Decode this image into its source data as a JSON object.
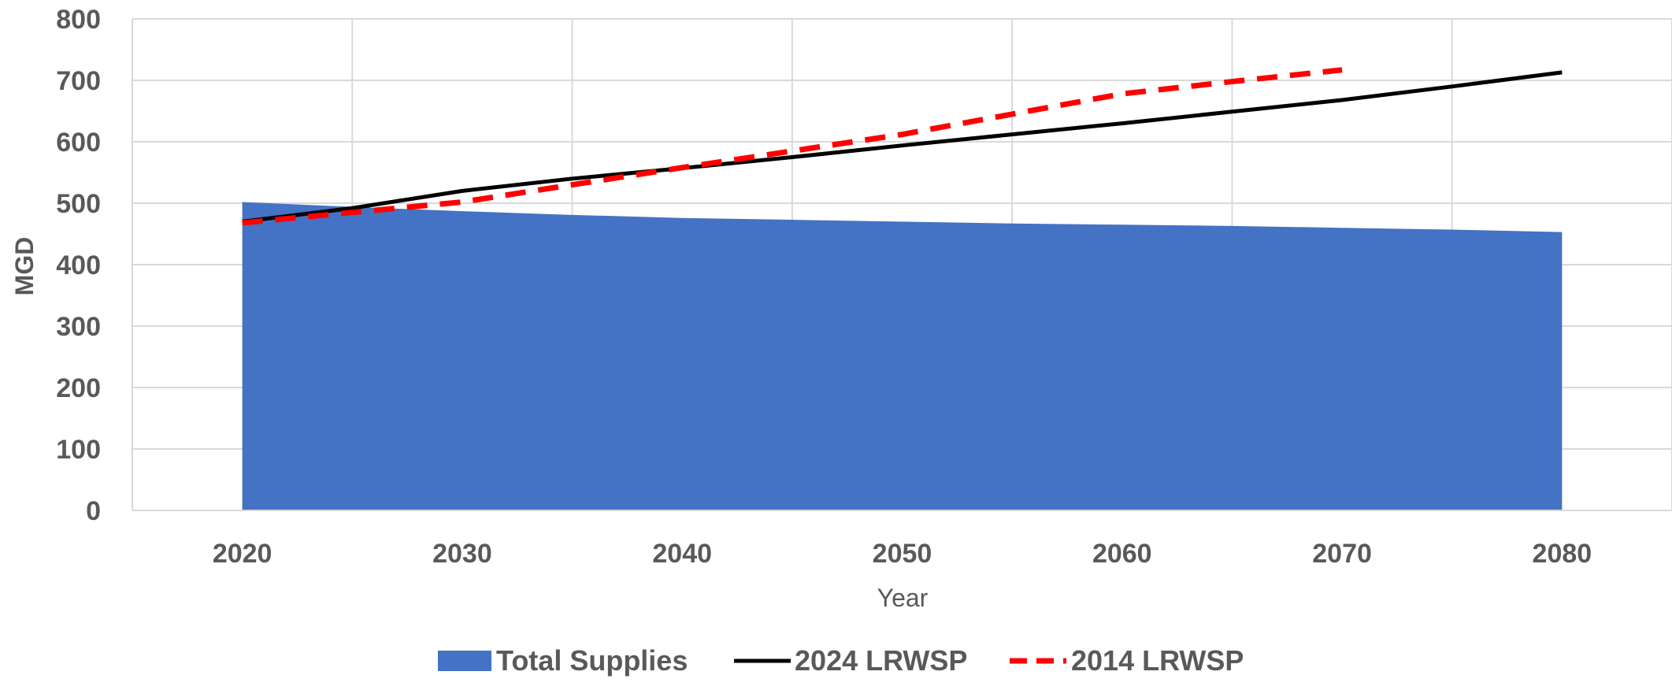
{
  "chart_data": {
    "type": "area",
    "xlabel": "Year",
    "ylabel": "MGD",
    "xlim": [
      2015,
      2085
    ],
    "ylim": [
      0,
      800
    ],
    "x_ticks": [
      2020,
      2030,
      2040,
      2050,
      2060,
      2070,
      2080
    ],
    "y_ticks": [
      0,
      100,
      200,
      300,
      400,
      500,
      600,
      700,
      800
    ],
    "grid": true,
    "legend_position": "bottom",
    "series": [
      {
        "name": "Total Supplies",
        "kind": "area",
        "color": "#4472C4",
        "x": [
          2020,
          2025,
          2030,
          2035,
          2040,
          2045,
          2050,
          2055,
          2060,
          2065,
          2070,
          2075,
          2080
        ],
        "values": [
          502,
          494,
          487,
          481,
          476,
          473,
          470,
          467,
          465,
          463,
          460,
          457,
          453
        ]
      },
      {
        "name": "2024 LRWSP",
        "kind": "line",
        "color": "#000000",
        "dash": "solid",
        "x": [
          2020,
          2025,
          2030,
          2035,
          2040,
          2045,
          2050,
          2055,
          2060,
          2065,
          2070,
          2075,
          2080
        ],
        "values": [
          470,
          492,
          520,
          540,
          557,
          575,
          594,
          612,
          630,
          649,
          668,
          690,
          713
        ]
      },
      {
        "name": "2014 LRWSP",
        "kind": "line",
        "color": "#FF0000",
        "dash": "dashed",
        "x": [
          2020,
          2025,
          2030,
          2035,
          2040,
          2045,
          2050,
          2055,
          2060,
          2065,
          2070
        ],
        "values": [
          468,
          485,
          502,
          530,
          558,
          585,
          612,
          645,
          678,
          698,
          717
        ]
      }
    ]
  }
}
